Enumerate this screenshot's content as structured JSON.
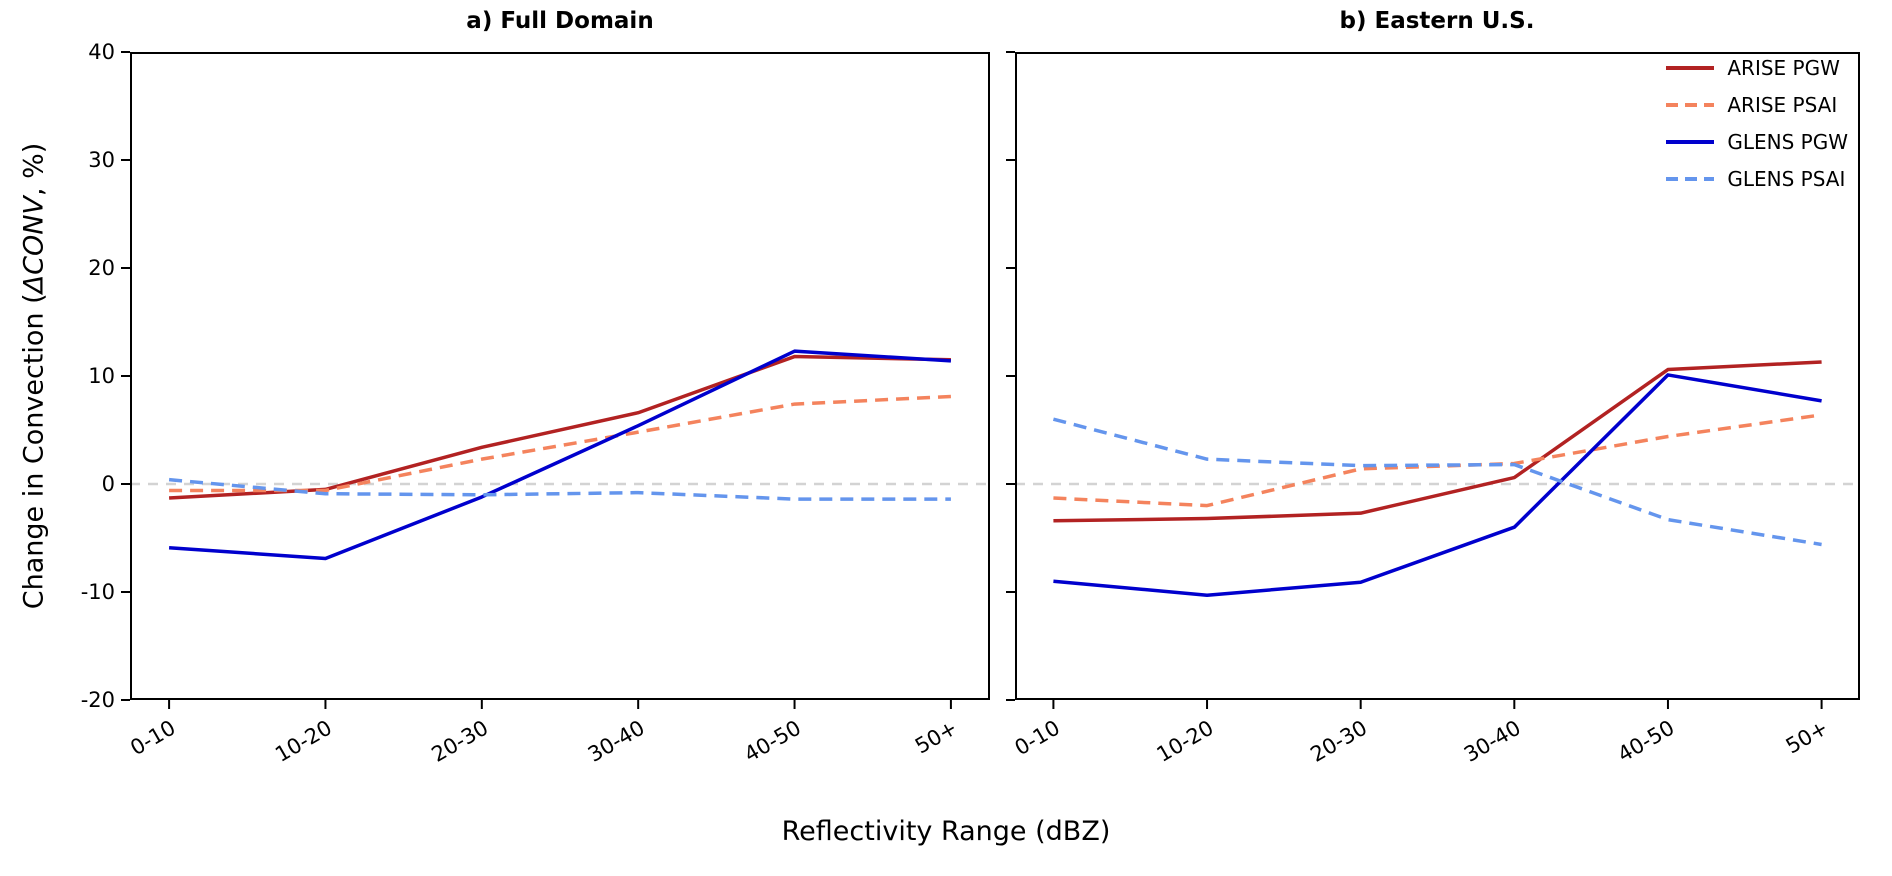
{
  "figure": {
    "xlabel": "Reflectivity Range (dBZ)",
    "ylabel_prefix": "Change in Convection (",
    "ylabel_math": "ΔCONV",
    "ylabel_suffix": ", %)",
    "background_color": "#ffffff",
    "axis_color": "#000000",
    "zero_line_color": "#d3d3d3"
  },
  "chart_data": [
    {
      "type": "line",
      "title": "a) Full Domain",
      "categories": [
        "0-10",
        "10-20",
        "20-30",
        "30-40",
        "40-50",
        "50+"
      ],
      "xlabel": "Reflectivity Range (dBZ)",
      "ylabel": "Change in Convection (ΔCONV, %)",
      "ylim": [
        -20,
        40
      ],
      "yticks": [
        -20,
        -10,
        0,
        10,
        20,
        30,
        40
      ],
      "grid": false,
      "zero_line": true,
      "show_ytick_labels": true,
      "series": [
        {
          "name": "ARISE PGW",
          "color": "#b22222",
          "style": "solid",
          "values": [
            -1.3,
            -0.5,
            3.4,
            6.6,
            11.8,
            11.5
          ]
        },
        {
          "name": "ARISE PSAI",
          "color": "#f4835d",
          "style": "dashed",
          "values": [
            -0.6,
            -0.6,
            2.3,
            4.8,
            7.4,
            8.1
          ]
        },
        {
          "name": "GLENS PGW",
          "color": "#0000cd",
          "style": "solid",
          "values": [
            -5.9,
            -6.9,
            -1.2,
            5.4,
            12.3,
            11.4
          ]
        },
        {
          "name": "GLENS PSAI",
          "color": "#6495ed",
          "style": "dashed",
          "values": [
            0.4,
            -0.9,
            -1.0,
            -0.8,
            -1.4,
            -1.4
          ]
        }
      ]
    },
    {
      "type": "line",
      "title": "b) Eastern U.S.",
      "categories": [
        "0-10",
        "10-20",
        "20-30",
        "30-40",
        "40-50",
        "50+"
      ],
      "xlabel": "Reflectivity Range (dBZ)",
      "ylabel": "Change in Convection (ΔCONV, %)",
      "ylim": [
        -20,
        40
      ],
      "yticks": [
        -20,
        -10,
        0,
        10,
        20,
        30,
        40
      ],
      "grid": false,
      "zero_line": true,
      "show_ytick_labels": false,
      "legend_position": "upper right",
      "series": [
        {
          "name": "ARISE PGW",
          "color": "#b22222",
          "style": "solid",
          "values": [
            -3.4,
            -3.2,
            -2.7,
            0.6,
            10.6,
            11.3
          ]
        },
        {
          "name": "ARISE PSAI",
          "color": "#f4835d",
          "style": "dashed",
          "values": [
            -1.3,
            -2.0,
            1.4,
            1.9,
            4.4,
            6.4
          ]
        },
        {
          "name": "GLENS PGW",
          "color": "#0000cd",
          "style": "solid",
          "values": [
            -9.0,
            -10.3,
            -9.1,
            -4.0,
            10.1,
            7.7
          ]
        },
        {
          "name": "GLENS PSAI",
          "color": "#6495ed",
          "style": "dashed",
          "values": [
            6.0,
            2.3,
            1.7,
            1.8,
            -3.3,
            -5.6
          ]
        }
      ]
    }
  ]
}
